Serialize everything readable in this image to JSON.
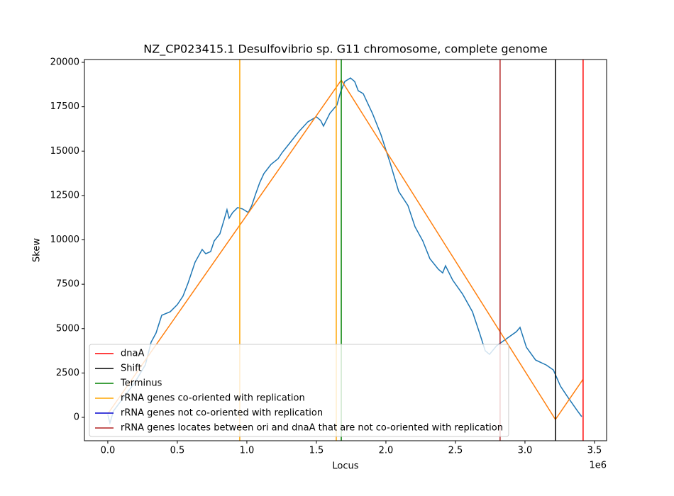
{
  "chart_data": {
    "type": "line",
    "title": "NZ_CP023415.1 Desulfovibrio sp. G11 chromosome, complete genome",
    "xlabel": "Locus",
    "ylabel": "Skew",
    "x_offset_label": "1e6",
    "xlim": [
      -168000,
      3587000
    ],
    "ylim": [
      -1317,
      20160
    ],
    "xticks": [
      {
        "value": 0,
        "label": "0.0"
      },
      {
        "value": 500000,
        "label": "0.5"
      },
      {
        "value": 1000000,
        "label": "1.0"
      },
      {
        "value": 1500000,
        "label": "1.5"
      },
      {
        "value": 2000000,
        "label": "2.0"
      },
      {
        "value": 2500000,
        "label": "2.5"
      },
      {
        "value": 3000000,
        "label": "3.0"
      },
      {
        "value": 3500000,
        "label": "3.5"
      }
    ],
    "yticks": [
      0,
      2500,
      5000,
      7500,
      10000,
      12500,
      15000,
      17500,
      20000
    ],
    "legend": "lower left",
    "series": [
      {
        "color": "#1f77b4",
        "x": [
          0,
          15300,
          40800,
          117300,
          193900,
          270400,
          311200,
          346900,
          387800,
          449000,
          500000,
          540800,
          576500,
          627600,
          678600,
          704100,
          739800,
          765300,
          806100,
          836700,
          857100,
          872400,
          898000,
          933700,
          969400,
          1010200,
          1035700,
          1061200,
          1091800,
          1122400,
          1173500,
          1224500,
          1255100,
          1316300,
          1377600,
          1438800,
          1500000,
          1530600,
          1551000,
          1597000,
          1648000,
          1673500,
          1704100,
          1744900,
          1775500,
          1801000,
          1836700,
          1867300,
          1903000,
          1964300,
          2030600,
          2091800,
          2158100,
          2209200,
          2265300,
          2316300,
          2377600,
          2408200,
          2428600,
          2479600,
          2551000,
          2622400,
          2673500,
          2714300,
          2744900,
          2795900,
          2867300,
          2938800,
          2964300,
          3010200,
          3076500,
          3153000,
          3204100,
          3255100,
          3306100,
          3377600,
          3408200
        ],
        "values": [
          160,
          -320,
          360,
          1160,
          1960,
          2960,
          4230,
          4750,
          5750,
          5950,
          6350,
          6830,
          7550,
          8740,
          9460,
          9220,
          9340,
          9940,
          10340,
          11140,
          11700,
          11220,
          11540,
          11820,
          11740,
          11540,
          11940,
          12540,
          13210,
          13730,
          14250,
          14570,
          14930,
          15530,
          16130,
          16650,
          16930,
          16730,
          16410,
          17130,
          17600,
          18320,
          18920,
          19120,
          18920,
          18400,
          18240,
          17720,
          17130,
          15930,
          14330,
          12730,
          11940,
          10740,
          9940,
          8940,
          8340,
          8140,
          8540,
          7740,
          6950,
          5950,
          4750,
          3750,
          3550,
          4030,
          4430,
          4830,
          5070,
          3950,
          3230,
          2950,
          2670,
          1760,
          1160,
          360,
          40
        ]
      },
      {
        "color": "#ff7f0e",
        "x": [
          0,
          1679000,
          3219000,
          3418000
        ],
        "values": [
          200,
          19000,
          -120,
          2150
        ]
      }
    ],
    "vlines": [
      {
        "name": "dnaA",
        "color": "#ff0000",
        "x": [
          3418000
        ]
      },
      {
        "name": "Shift",
        "color": "#000000",
        "x": [
          3219000
        ]
      },
      {
        "name": "Terminus",
        "color": "#008000",
        "x": [
          1679000
        ]
      },
      {
        "name": "rRNA genes co-oriented with replication",
        "color": "#ffa500",
        "x": [
          949000,
          1643000
        ]
      },
      {
        "name": "rRNA genes not co-oriented with replication",
        "color": "#0000cd",
        "x": []
      },
      {
        "name": "rRNA genes locates between ori and dnaA that are not co-oriented with replication",
        "color": "#b22222",
        "x": [
          2821000
        ]
      }
    ]
  }
}
